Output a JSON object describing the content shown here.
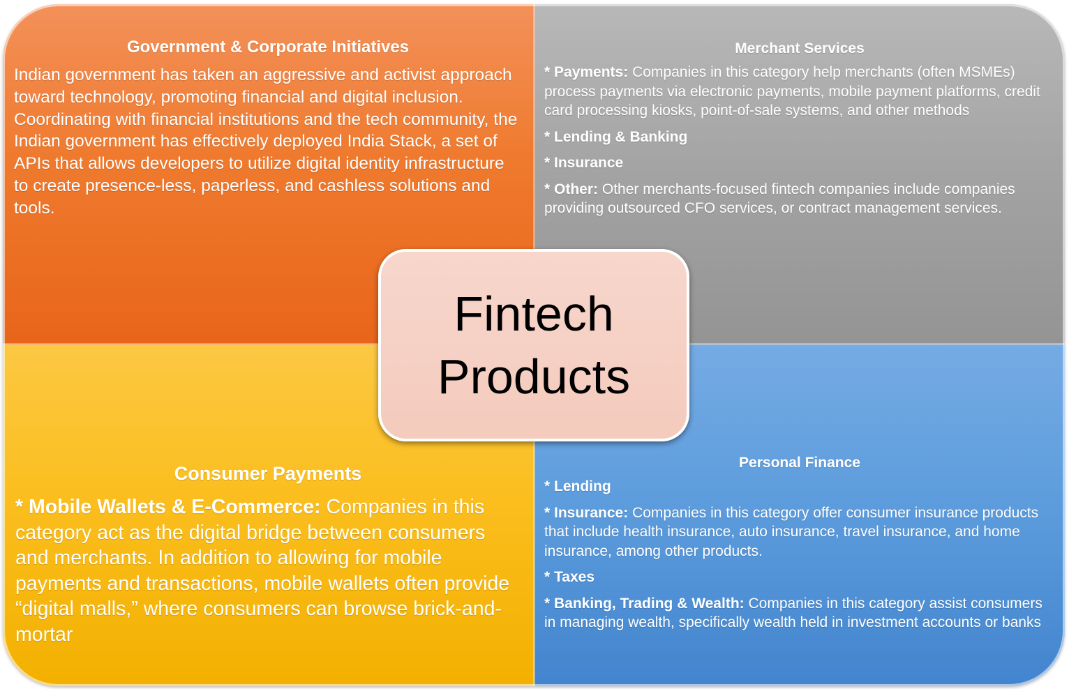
{
  "center": {
    "title_line1": "Fintech",
    "title_line2": "Products"
  },
  "quadrants": {
    "top_left": {
      "title": "Government & Corporate Initiatives",
      "body": "Indian government has taken an aggressive and activist approach toward technology, promoting financial and digital inclusion. Coordinating with financial institutions and the tech community, the Indian government has effectively deployed India Stack, a set of APIs that allows developers to utilize digital identity infrastructure to create presence-less, paperless, and cashless solutions and tools.",
      "color": "#ef7a2e"
    },
    "top_right": {
      "title": "Merchant Services",
      "color": "#a3a3a3",
      "items": [
        {
          "label": "* Payments:",
          "text": "Companies in this category help merchants (often MSMEs) process payments via electronic payments, mobile payment platforms, credit card processing kiosks, point-of-sale systems, and other methods"
        },
        {
          "label": "* Lending & Banking",
          "text": ""
        },
        {
          "label": "* Insurance",
          "text": ""
        },
        {
          "label": "* Other:",
          "text": "Other merchants-focused fintech companies include companies providing outsourced CFO services, or contract management services."
        }
      ]
    },
    "bottom_left": {
      "title": "Consumer Payments",
      "color": "#fbbe1e",
      "label": "* Mobile Wallets & E-Commerce:",
      "text": "Companies in this category act as the digital bridge between consumers and merchants. In addition to allowing for mobile payments and transactions, mobile wallets often provide “digital malls,” where consumers can browse brick-and-mortar"
    },
    "bottom_right": {
      "title": "Personal Finance",
      "color": "#5b9bdc",
      "items": [
        {
          "label": "* Lending",
          "text": ""
        },
        {
          "label": "* Insurance:",
          "text": "Companies in this category offer consumer insurance products that include health insurance, auto insurance, travel insurance, and home insurance, among other products."
        },
        {
          "label": "* Taxes",
          "text": ""
        },
        {
          "label": "* Banking, Trading & Wealth:",
          "text": "Companies in this category assist consumers in managing wealth, specifically wealth held in investment accounts or banks"
        }
      ]
    }
  }
}
